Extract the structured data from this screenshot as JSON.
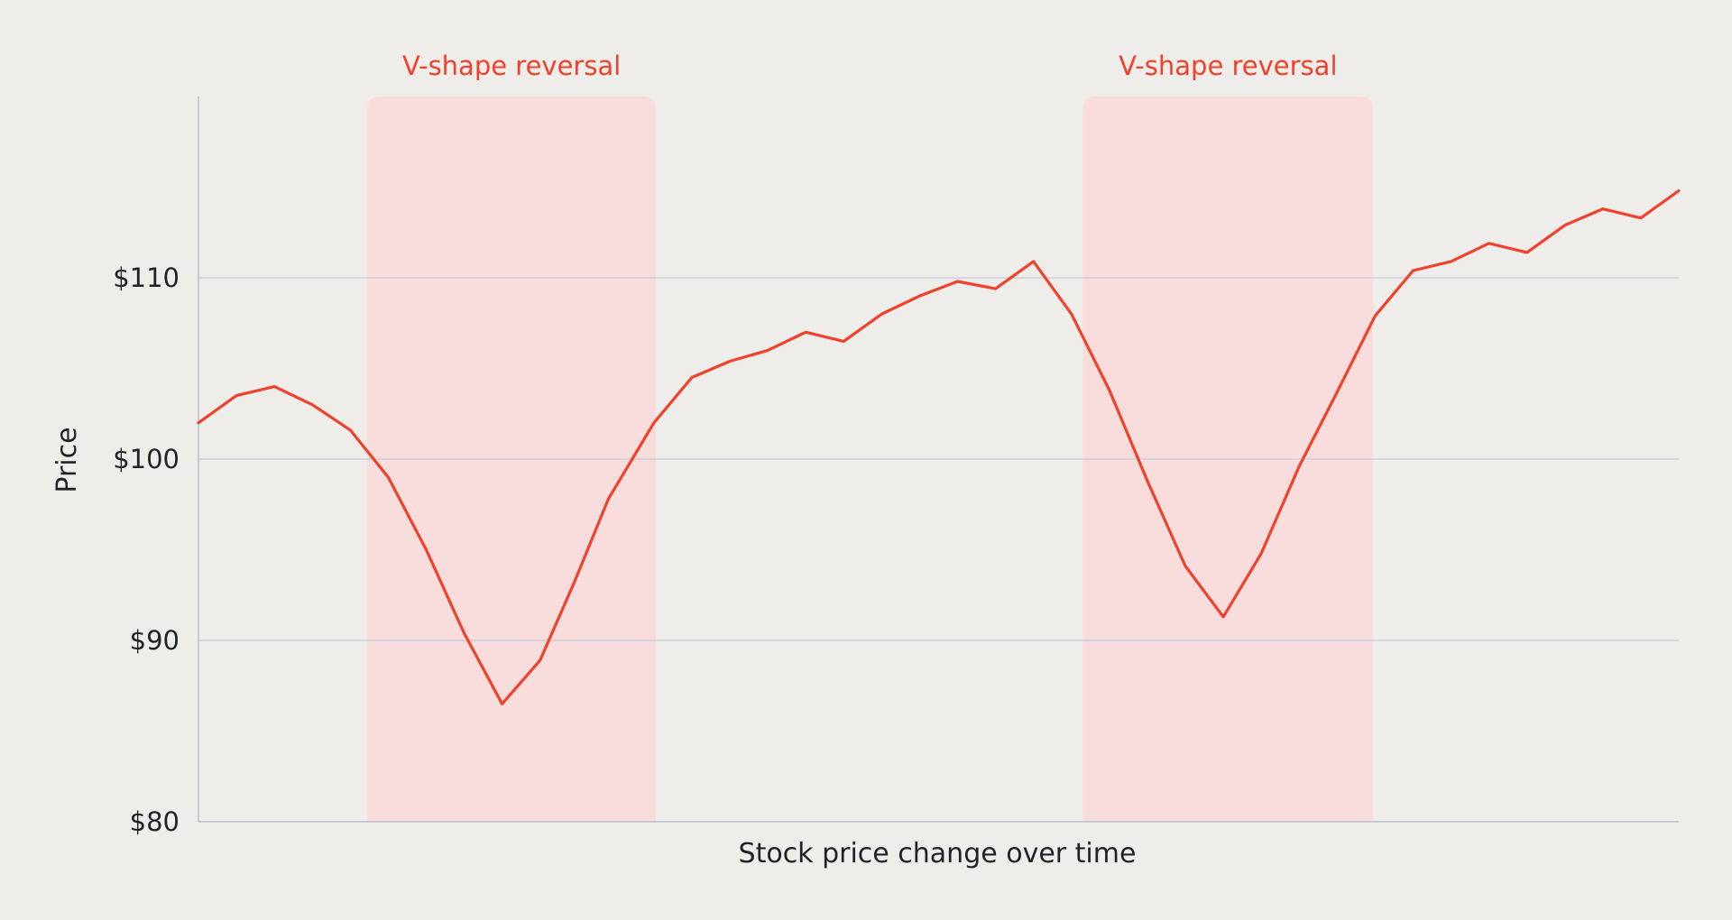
{
  "colors": {
    "background": "#efede9",
    "line": "#f0412d",
    "band": "#f9dcdc",
    "grid": "#c3cbd6",
    "axis": "#b9c0ca",
    "text": "#1f2328",
    "annotation": "#f0412d"
  },
  "chart_data": {
    "type": "line",
    "title": "",
    "xlabel": "Stock price change over time",
    "ylabel": "Price",
    "ylim": [
      80,
      120
    ],
    "yticks": [
      80,
      90,
      100,
      110
    ],
    "ytick_labels": [
      "$80",
      "$90",
      "$100",
      "$110"
    ],
    "grid": true,
    "x": [
      0,
      1,
      2,
      3,
      4,
      5,
      6,
      7,
      8,
      9,
      9.9,
      10.8,
      12,
      13,
      14,
      15,
      16,
      17,
      18,
      19,
      20,
      21,
      22,
      23,
      24,
      25,
      26,
      27,
      28,
      29,
      30,
      31,
      32,
      33,
      34,
      35,
      36,
      37,
      38,
      39
    ],
    "series": [
      {
        "values": [
          102.0,
          103.5,
          104.0,
          103.0,
          101.6,
          99.0,
          95.0,
          90.4,
          86.5,
          88.9,
          93.2,
          97.8,
          102.0,
          104.5,
          105.4,
          106.0,
          107.0,
          106.5,
          108.0,
          109.0,
          109.8,
          109.4,
          110.9,
          108.0,
          103.8,
          98.8,
          94.1,
          91.3,
          94.8,
          99.6,
          103.7,
          107.9,
          110.4,
          110.9,
          111.9,
          111.4,
          112.9,
          113.8,
          113.3,
          114.8
        ]
      }
    ],
    "annotations": [
      {
        "label": "V-shape reversal",
        "x_start": 4.45,
        "x_end": 12.05
      },
      {
        "label": "V-shape reversal",
        "x_start": 23.3,
        "x_end": 30.95
      }
    ]
  }
}
